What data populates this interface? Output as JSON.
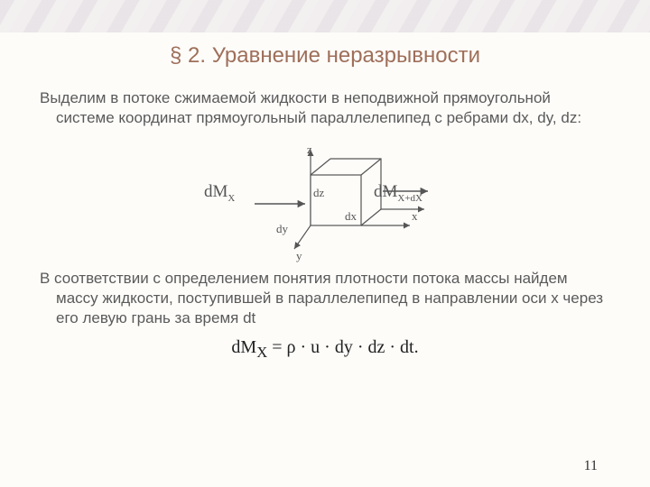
{
  "title": "§ 2. Уравнение неразрывности",
  "para1": "Выделим в потоке сжимаемой жидкости в неподвижной прямоугольной системе координат прямоугольный параллелепипед с ребрами dx, dy, dz:",
  "para2": "В соответствии с определением понятия плотности потока массы найдем массу жидкости, поступившей в параллелепипед в направлении оси x через его левую грань за время dt",
  "equation": "dM<sub>X</sub> = ρ · u · dy · dz · dt.",
  "page_number": "11",
  "figure": {
    "type": "cube-diagram",
    "axes": {
      "x": "x",
      "y": "y",
      "z": "z"
    },
    "edge_labels": {
      "dx": "dx",
      "dy": "dy",
      "dz": "dz"
    },
    "arrow_left": {
      "text": "dM",
      "sub": "X"
    },
    "arrow_right": {
      "text": "dM",
      "sub": "X+dX"
    },
    "stroke": "#555555",
    "fill": "#fdfcf9",
    "stroke_width": 1.2,
    "label_color": "#555555",
    "cube": {
      "front_w": 56,
      "front_h": 56,
      "depth_dx": 22,
      "depth_dy": -18
    }
  }
}
